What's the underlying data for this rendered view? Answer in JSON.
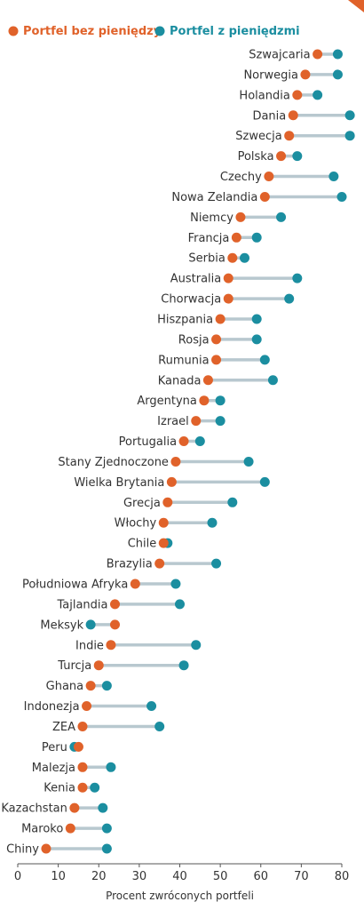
{
  "chart_data": {
    "type": "dumbbell",
    "xlabel": "Procent zwróconych portfeli",
    "xlim": [
      0,
      80
    ],
    "xticks": [
      0,
      10,
      20,
      30,
      40,
      50,
      60,
      70,
      80
    ],
    "series": [
      {
        "name": "Portfel bez pieniędzy",
        "color": "#e0622a"
      },
      {
        "name": "Portfel z pieniędzmi",
        "color": "#1b8ea0"
      }
    ],
    "connector_color": "#b8c8cf",
    "rows": [
      {
        "country": "Szwajcaria",
        "without": 74,
        "with": 79
      },
      {
        "country": "Norwegia",
        "without": 71,
        "with": 79
      },
      {
        "country": "Holandia",
        "without": 69,
        "with": 74
      },
      {
        "country": "Dania",
        "without": 68,
        "with": 82
      },
      {
        "country": "Szwecja",
        "without": 67,
        "with": 82
      },
      {
        "country": "Polska",
        "without": 65,
        "with": 69
      },
      {
        "country": "Czechy",
        "without": 62,
        "with": 78
      },
      {
        "country": "Nowa Zelandia",
        "without": 61,
        "with": 80
      },
      {
        "country": "Niemcy",
        "without": 55,
        "with": 65
      },
      {
        "country": "Francja",
        "without": 54,
        "with": 59
      },
      {
        "country": "Serbia",
        "without": 53,
        "with": 56
      },
      {
        "country": "Australia",
        "without": 52,
        "with": 69
      },
      {
        "country": "Chorwacja",
        "without": 52,
        "with": 67
      },
      {
        "country": "Hiszpania",
        "without": 50,
        "with": 59
      },
      {
        "country": "Rosja",
        "without": 49,
        "with": 59
      },
      {
        "country": "Rumunia",
        "without": 49,
        "with": 61
      },
      {
        "country": "Kanada",
        "without": 47,
        "with": 63
      },
      {
        "country": "Argentyna",
        "without": 46,
        "with": 50
      },
      {
        "country": "Izrael",
        "without": 44,
        "with": 50
      },
      {
        "country": "Portugalia",
        "without": 41,
        "with": 45
      },
      {
        "country": "Stany Zjednoczone",
        "without": 39,
        "with": 57
      },
      {
        "country": "Wielka Brytania",
        "without": 38,
        "with": 61
      },
      {
        "country": "Grecja",
        "without": 37,
        "with": 53
      },
      {
        "country": "Włochy",
        "without": 36,
        "with": 48
      },
      {
        "country": "Chile",
        "without": 36,
        "with": 37
      },
      {
        "country": "Brazylia",
        "without": 35,
        "with": 49
      },
      {
        "country": "Południowa Afryka",
        "without": 29,
        "with": 39
      },
      {
        "country": "Tajlandia",
        "without": 24,
        "with": 40
      },
      {
        "country": "Meksyk",
        "without": 24,
        "with": 18
      },
      {
        "country": "Indie",
        "without": 23,
        "with": 44
      },
      {
        "country": "Turcja",
        "without": 20,
        "with": 41
      },
      {
        "country": "Ghana",
        "without": 18,
        "with": 22
      },
      {
        "country": "Indonezja",
        "without": 17,
        "with": 33
      },
      {
        "country": "ZEA",
        "without": 16,
        "with": 35
      },
      {
        "country": "Peru",
        "without": 15,
        "with": 14
      },
      {
        "country": "Malezja",
        "without": 16,
        "with": 23
      },
      {
        "country": "Kenia",
        "without": 16,
        "with": 19
      },
      {
        "country": "Kazachstan",
        "without": 14,
        "with": 21
      },
      {
        "country": "Maroko",
        "without": 13,
        "with": 22
      },
      {
        "country": "Chiny",
        "without": 7,
        "with": 22
      }
    ]
  }
}
